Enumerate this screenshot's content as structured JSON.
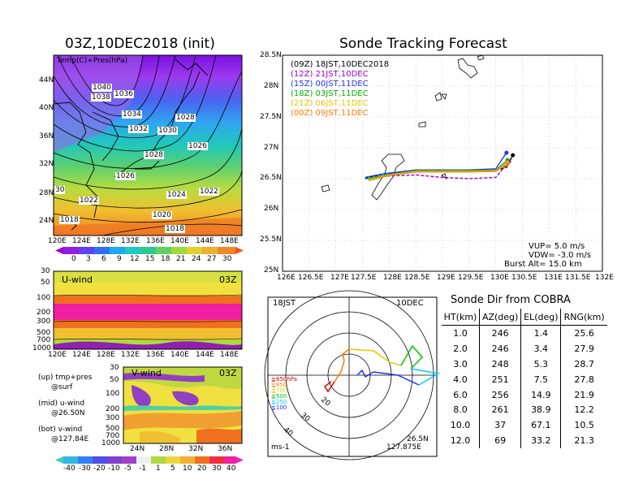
{
  "colors": {
    "purple": "#9a00c8",
    "blue": "#2030ff",
    "green": "#00b000",
    "yellow": "#e6c800",
    "orange": "#ff7a00",
    "black": "#000000"
  },
  "left_top": {
    "title": "03Z,10DEC2018 (init)",
    "sublabel": "Temp(C)+Pres(hPa)",
    "y_ticks": [
      "44N",
      "40N",
      "36N",
      "32N",
      "28N",
      "24N"
    ],
    "x_ticks": [
      "120E",
      "124E",
      "128E",
      "132E",
      "136E",
      "140E",
      "144E",
      "148E"
    ],
    "contour_labels": [
      "1040",
      "1038",
      "1036",
      "1034",
      "1032",
      "1030",
      "1028",
      "1028",
      "1026",
      "1026",
      "1024",
      "1022",
      "1022",
      "1020",
      "1018",
      "1018",
      "30"
    ],
    "colorbar_labels": [
      "0",
      "3",
      "6",
      "9",
      "12",
      "15",
      "18",
      "21",
      "24",
      "27",
      "30"
    ]
  },
  "left_mid": {
    "label": "U-wind",
    "time": "03Z",
    "y_ticks": [
      "30",
      "50",
      "100",
      "200",
      "300",
      "500",
      "700",
      "1000"
    ],
    "x_ticks": [
      "120E",
      "124E",
      "128E",
      "132E",
      "136E",
      "140E",
      "144E",
      "148E"
    ]
  },
  "left_bot": {
    "label": "V-wind",
    "time": "03Z",
    "y_ticks": [
      "30",
      "50",
      "100",
      "200",
      "300",
      "500",
      "700",
      "1000"
    ],
    "x_ticks": [
      "24N",
      "28N",
      "32N",
      "36N"
    ],
    "legend": [
      "(up) tmp+pres",
      "@surf",
      "(mid) u-wind",
      "@26.50N",
      "(bot) v-wind",
      "@127.84E"
    ],
    "colorbar_labels": [
      "-40",
      "-30",
      "-20",
      "-10",
      "-5",
      "-1",
      "1",
      "5",
      "10",
      "20",
      "30",
      "40"
    ]
  },
  "tracking": {
    "title": "Sonde Tracking Forecast",
    "legend": [
      {
        "text": "(09Z)  18JST,10DEC2018",
        "color": "#000000"
      },
      {
        "text": "(12Z)  21JST,10DEC",
        "color": "#9a00c8"
      },
      {
        "text": "(15Z)  00JST,11DEC",
        "color": "#2030ff"
      },
      {
        "text": "(18Z)  03JST,11DEC",
        "color": "#00b000"
      },
      {
        "text": "(21Z)  06JST,11DEC",
        "color": "#e6c800"
      },
      {
        "text": "(00Z)  09JST,11DEC",
        "color": "#ff7a00"
      }
    ],
    "y_ticks": [
      "28.5N",
      "28N",
      "27.5N",
      "27N",
      "26.5N",
      "26N",
      "25.5N",
      "25N"
    ],
    "x_ticks": [
      "126E",
      "126.5E",
      "127E",
      "127.5E",
      "128E",
      "128.5E",
      "129E",
      "129.5E",
      "130E",
      "130.5E",
      "131E",
      "131.5E",
      "132E"
    ],
    "params": [
      "VUP=  5.0  m/s",
      "VDW= -3.0  m/s",
      "Burst Alt=  15.0  km"
    ]
  },
  "polar": {
    "time": "18JST",
    "date": "10DEC",
    "ring_labels": [
      "20",
      "30",
      "40"
    ],
    "levels": [
      {
        "text": "≧850hPa",
        "color": "#e00000"
      },
      {
        "text": "≦850",
        "color": "#ff7a00"
      },
      {
        "text": "≦700",
        "color": "#e6c800"
      },
      {
        "text": "≦500",
        "color": "#00c000"
      },
      {
        "text": "≦250",
        "color": "#00c8ff"
      },
      {
        "text": "≦100",
        "color": "#2030ff"
      }
    ],
    "units": "ms-1",
    "lat": "26.5N",
    "lon": "127.875E"
  },
  "sonde_table": {
    "title": "Sonde Dir from COBRA",
    "headers": [
      "HT(km)",
      "AZ(deg)",
      "EL(deg)",
      "RNG(km)"
    ],
    "rows": [
      [
        "1.0",
        "246",
        "1.4",
        "25.6"
      ],
      [
        "2.0",
        "246",
        "3.4",
        "27.9"
      ],
      [
        "3.0",
        "248",
        "5.3",
        "28.7"
      ],
      [
        "4.0",
        "251",
        "7.5",
        "27.8"
      ],
      [
        "6.0",
        "256",
        "14.9",
        "21.9"
      ],
      [
        "8.0",
        "261",
        "38.9",
        "12.2"
      ],
      [
        "10.0",
        "37",
        "67.1",
        "10.5"
      ],
      [
        "12.0",
        "69",
        "33.2",
        "21.3"
      ]
    ]
  },
  "chart_data": [
    {
      "type": "heatmap",
      "title": "03Z,10DEC2018 (init)",
      "subtitle": "Temp(C)+Pres(hPa)",
      "xlabel": "",
      "ylabel": "",
      "x_range": [
        "120E",
        "150E"
      ],
      "y_range": [
        "22N",
        "48N"
      ],
      "colorbar": [
        0,
        3,
        6,
        9,
        12,
        15,
        18,
        21,
        24,
        27,
        30
      ],
      "contours_hPa": [
        1018,
        1020,
        1022,
        1024,
        1026,
        1028,
        1030,
        1032,
        1034,
        1036,
        1038,
        1040
      ]
    },
    {
      "type": "heatmap",
      "title": "U-wind",
      "subtitle": "03Z",
      "y_levels_hPa": [
        30,
        50,
        100,
        200,
        300,
        500,
        700,
        1000
      ],
      "x_range": [
        "120E",
        "150E"
      ]
    },
    {
      "type": "heatmap",
      "title": "V-wind",
      "subtitle": "03Z",
      "y_levels_hPa": [
        30,
        50,
        100,
        200,
        300,
        500,
        700,
        1000
      ],
      "x_range": [
        "22N",
        "38N"
      ],
      "colorbar": [
        -40,
        -30,
        -20,
        -10,
        -5,
        -1,
        1,
        5,
        10,
        20,
        30,
        40
      ]
    },
    {
      "type": "line",
      "title": "Sonde Tracking Forecast",
      "xlim": [
        126,
        132
      ],
      "ylim": [
        25,
        28.5
      ],
      "series": [
        {
          "name": "(09Z)  18JST,10DEC2018",
          "x": [
            127.55,
            127.9,
            128.4,
            128.9,
            129.4,
            129.9,
            130.2,
            130.32
          ],
          "y": [
            26.5,
            26.58,
            26.62,
            26.64,
            26.62,
            26.62,
            26.68,
            26.88
          ]
        },
        {
          "name": "(12Z)  21JST,10DEC",
          "x": [
            127.6,
            127.9,
            128.5,
            129.0,
            129.5,
            130.0,
            130.25
          ],
          "y": [
            26.48,
            26.54,
            26.56,
            26.52,
            26.5,
            26.52,
            26.78
          ]
        },
        {
          "name": "(15Z)  00JST,11DEC",
          "x": [
            127.55,
            127.9,
            128.5,
            129.0,
            129.5,
            130.0,
            130.2
          ],
          "y": [
            26.52,
            26.58,
            26.64,
            26.64,
            26.64,
            26.66,
            26.92
          ]
        },
        {
          "name": "(18Z)  03JST,11DEC",
          "x": [
            127.58,
            128.0,
            128.5,
            129.0,
            129.5,
            130.0,
            130.22
          ],
          "y": [
            26.5,
            26.57,
            26.63,
            26.63,
            26.63,
            26.64,
            26.8
          ]
        },
        {
          "name": "(21Z)  06JST,11DEC",
          "x": [
            127.6,
            128.0,
            128.5,
            129.0,
            129.5,
            130.0,
            130.22
          ],
          "y": [
            26.48,
            26.56,
            26.62,
            26.62,
            26.62,
            26.63,
            26.76
          ]
        },
        {
          "name": "(00Z)  09JST,11DEC",
          "x": [
            127.62,
            128.0,
            128.5,
            129.0,
            129.5,
            130.0,
            130.22
          ],
          "y": [
            26.47,
            26.55,
            26.61,
            26.61,
            26.61,
            26.62,
            26.74
          ]
        }
      ],
      "annotations": [
        "VUP=  5.0  m/s",
        "VDW= -3.0  m/s",
        "Burst Alt=  15.0  km"
      ]
    },
    {
      "type": "table",
      "title": "Sonde Dir from COBRA",
      "columns": [
        "HT(km)",
        "AZ(deg)",
        "EL(deg)",
        "RNG(km)"
      ]
    }
  ]
}
